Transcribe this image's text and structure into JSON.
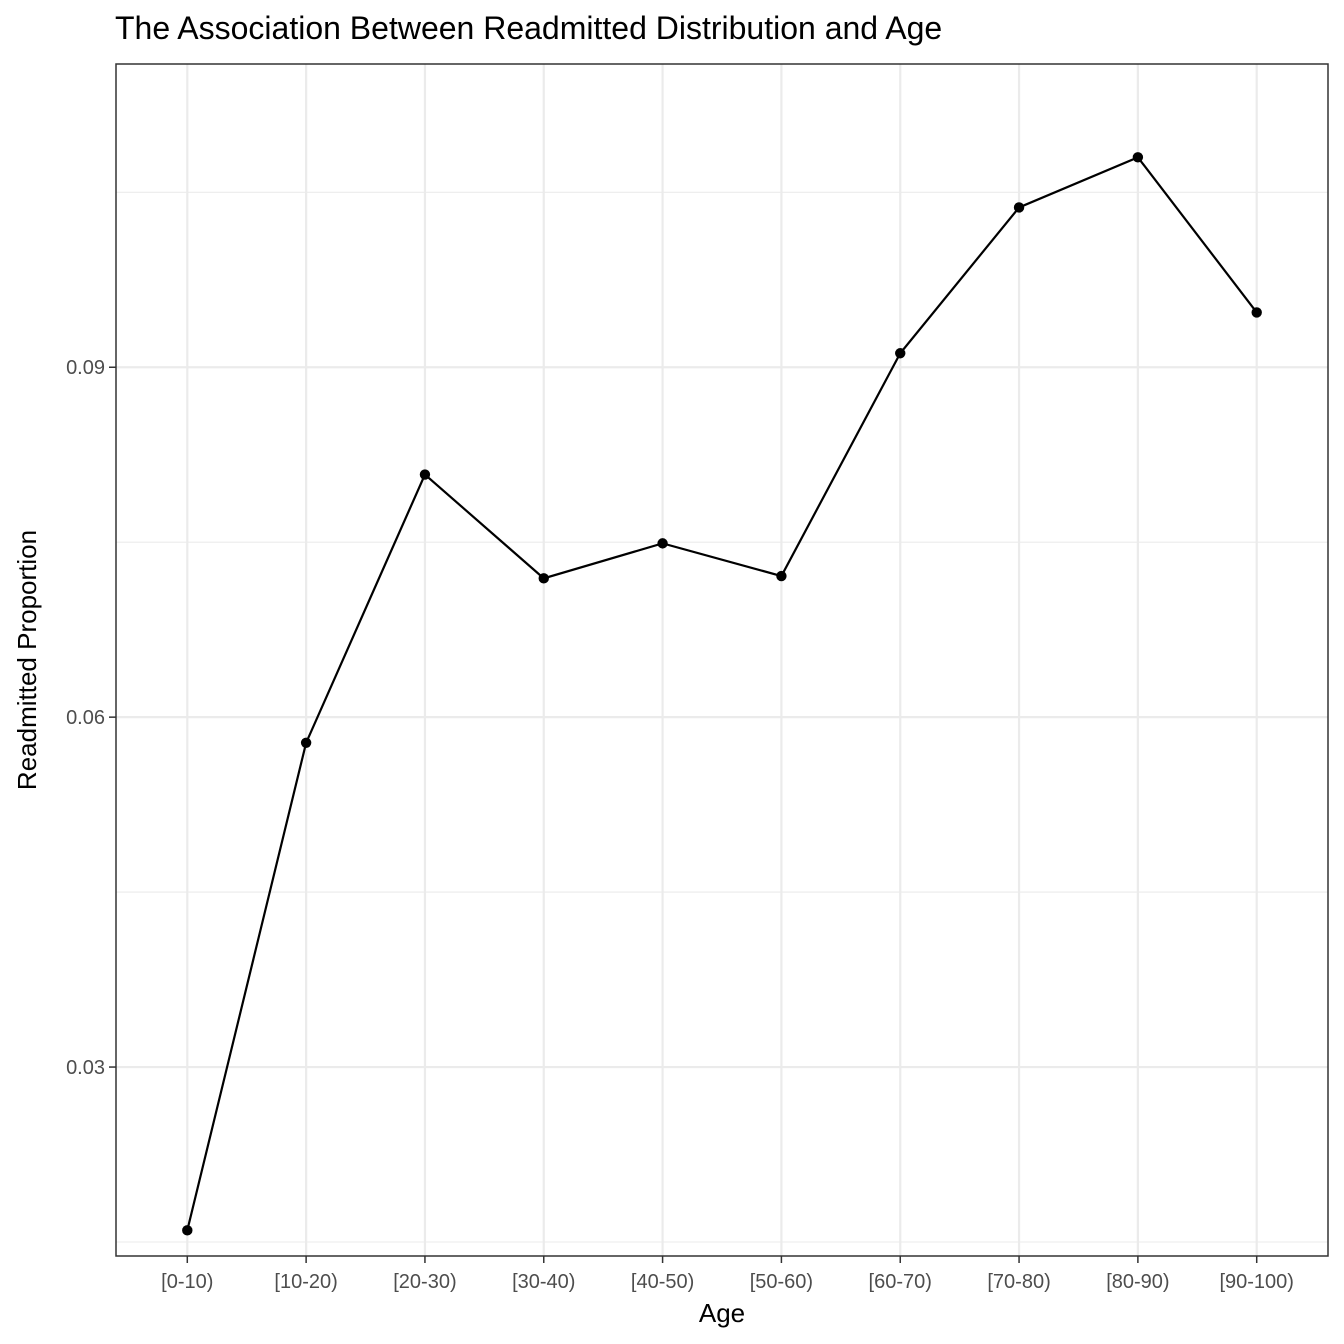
{
  "chart_data": {
    "type": "line",
    "title": "The Association Between Readmitted Distribution and Age",
    "xlabel": "Age",
    "ylabel": "Readmitted Proportion",
    "categories": [
      "[0-10)",
      "[10-20)",
      "[20-30)",
      "[30-40)",
      "[40-50)",
      "[50-60)",
      "[60-70)",
      "[70-80)",
      "[80-90)",
      "[90-100)"
    ],
    "values": [
      0.016,
      0.0578,
      0.0808,
      0.0719,
      0.0749,
      0.0721,
      0.0912,
      0.1037,
      0.108,
      0.0947
    ],
    "ylim": [
      0.0138,
      0.116
    ],
    "y_ticks": [
      0.03,
      0.06,
      0.09
    ],
    "y_tick_labels": [
      "0.03",
      "0.06",
      "0.09"
    ],
    "y_minor_ticks": [
      0.015,
      0.045,
      0.075,
      0.105
    ],
    "grid": true,
    "legend": "none",
    "colors": {
      "line": "#000000",
      "point": "#000000",
      "grid": "#ebebeb",
      "border": "#333333"
    }
  }
}
